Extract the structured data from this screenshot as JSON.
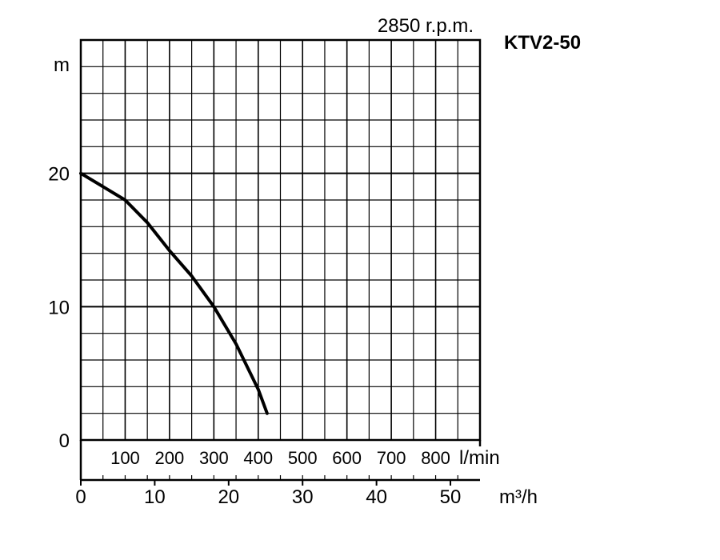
{
  "chart_data": {
    "type": "line",
    "title": "KTV2-50",
    "subtitle": "2850 r.p.m.",
    "ylabel": "m",
    "xlabel_secondary": "l/min",
    "xlabel": "m³/h",
    "xlim": [
      0,
      54
    ],
    "ylim": [
      0,
      30
    ],
    "y_ticks": [
      "0",
      "10",
      "20"
    ],
    "y_tick_values": [
      0,
      10,
      20
    ],
    "lmin_ticks": [
      "100",
      "200",
      "300",
      "400",
      "500",
      "600",
      "700",
      "800"
    ],
    "lmin_tick_values": [
      100,
      200,
      300,
      400,
      500,
      600,
      700,
      800
    ],
    "m3h_ticks": [
      "0",
      "10",
      "20",
      "30",
      "40",
      "50"
    ],
    "m3h_tick_values": [
      0,
      10,
      20,
      30,
      40,
      50
    ],
    "grid": true,
    "series": [
      {
        "x": [
          0,
          3,
          6,
          9,
          12,
          15,
          18,
          21,
          24,
          25.2
        ],
        "y": [
          20,
          19,
          18,
          16.3,
          14.2,
          12.3,
          10,
          7.2,
          3.8,
          2
        ]
      }
    ]
  }
}
